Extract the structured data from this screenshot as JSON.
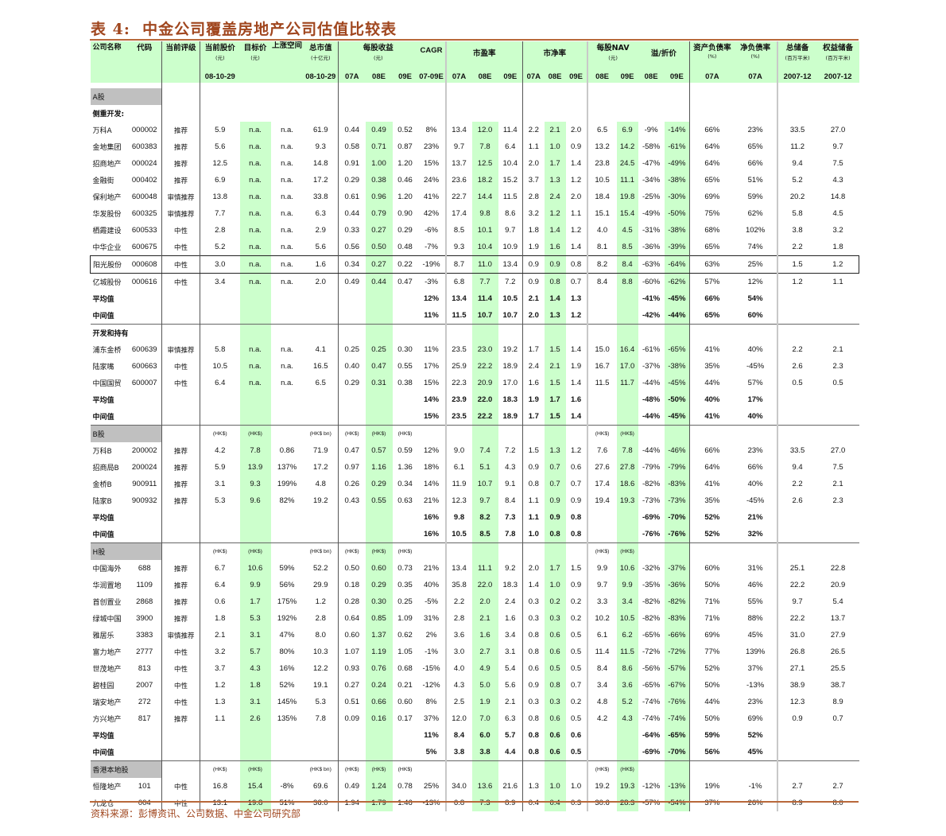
{
  "title": "表 4:  中金公司覆盖房地产公司估值比较表",
  "source": "资料来源：彭博资讯、公司数据、中金公司研究部",
  "colors": {
    "header_bg": "#ccffcc",
    "highlight_col": "#ccffcc",
    "section_bg": "#c0c0c0",
    "title": "#a0461e"
  },
  "header": {
    "name": "公司名称",
    "code": "代码",
    "rating": "当前评级",
    "price": "当前股价",
    "price_unit": "(元)",
    "price_date": "08-10-29",
    "target": "目标价",
    "target_unit": "(元)",
    "upside": "上涨空间",
    "mktcap": "总市值",
    "mktcap_unit": "(十亿元)",
    "mktcap_date": "08-10-29",
    "eps": "每股收益",
    "eps_unit": "(元)",
    "cagr": "CAGR",
    "pe": "市盈率",
    "pb": "市净率",
    "nav": "每股NAV",
    "nav_unit": "(元)",
    "prem": "溢/折价",
    "debt": "资产负债率",
    "debt_unit": "(%)",
    "netdebt": "净负债率",
    "netdebt_unit": "(%)",
    "reserve": "总储备",
    "reserve_unit": "(百万平米)",
    "equity": "权益储备",
    "equity_unit": "(百万平米)",
    "sub": [
      "07A",
      "08E",
      "09E",
      "07-09E",
      "07A",
      "08E",
      "09E",
      "07A",
      "08E",
      "09E",
      "08E",
      "09E",
      "08E",
      "09E",
      "07A",
      "07A",
      "2007-12",
      "2007-12"
    ]
  },
  "rows": [
    {
      "type": "section",
      "cells": [
        "A股",
        "",
        "",
        "",
        "",
        "",
        "",
        "",
        "",
        "",
        "",
        "",
        "",
        "",
        "",
        "",
        "",
        "",
        "",
        "",
        "",
        "",
        "",
        "",
        ""
      ]
    },
    {
      "type": "group",
      "cells": [
        "侧重开发:",
        "",
        "",
        "",
        "",
        "",
        "",
        "",
        "",
        "",
        "",
        "",
        "",
        "",
        "",
        "",
        "",
        "",
        "",
        "",
        "",
        "",
        "",
        "",
        ""
      ]
    },
    {
      "type": "data",
      "cells": [
        "万科A",
        "000002",
        "推荐",
        "5.9",
        "n.a.",
        "n.a.",
        "61.9",
        "0.44",
        "0.49",
        "0.52",
        "8%",
        "13.4",
        "12.0",
        "11.4",
        "2.2",
        "2.1",
        "2.0",
        "6.5",
        "6.9",
        "-9%",
        "-14%",
        "66%",
        "23%",
        "33.5",
        "27.0"
      ]
    },
    {
      "type": "data",
      "cells": [
        "金地集团",
        "600383",
        "推荐",
        "5.6",
        "n.a.",
        "n.a.",
        "9.3",
        "0.58",
        "0.71",
        "0.87",
        "23%",
        "9.7",
        "7.8",
        "6.4",
        "1.1",
        "1.0",
        "0.9",
        "13.2",
        "14.2",
        "-58%",
        "-61%",
        "64%",
        "65%",
        "11.2",
        "9.7"
      ]
    },
    {
      "type": "data",
      "cells": [
        "招商地产",
        "000024",
        "推荐",
        "12.5",
        "n.a.",
        "n.a.",
        "14.8",
        "0.91",
        "1.00",
        "1.20",
        "15%",
        "13.7",
        "12.5",
        "10.4",
        "2.0",
        "1.7",
        "1.4",
        "23.8",
        "24.5",
        "-47%",
        "-49%",
        "64%",
        "66%",
        "9.4",
        "7.5"
      ]
    },
    {
      "type": "data",
      "cells": [
        "金融街",
        "000402",
        "推荐",
        "6.9",
        "n.a.",
        "n.a.",
        "17.2",
        "0.29",
        "0.38",
        "0.46",
        "24%",
        "23.6",
        "18.2",
        "15.2",
        "3.7",
        "1.3",
        "1.2",
        "10.5",
        "11.1",
        "-34%",
        "-38%",
        "65%",
        "51%",
        "5.2",
        "4.3"
      ]
    },
    {
      "type": "data",
      "cells": [
        "保利地产",
        "600048",
        "审慎推荐",
        "13.8",
        "n.a.",
        "n.a.",
        "33.8",
        "0.61",
        "0.96",
        "1.20",
        "41%",
        "22.7",
        "14.4",
        "11.5",
        "2.8",
        "2.4",
        "2.0",
        "18.4",
        "19.8",
        "-25%",
        "-30%",
        "69%",
        "59%",
        "20.2",
        "14.8"
      ]
    },
    {
      "type": "data",
      "cells": [
        "华发股份",
        "600325",
        "审慎推荐",
        "7.7",
        "n.a.",
        "n.a.",
        "6.3",
        "0.44",
        "0.79",
        "0.90",
        "42%",
        "17.4",
        "9.8",
        "8.6",
        "3.2",
        "1.2",
        "1.1",
        "15.1",
        "15.4",
        "-49%",
        "-50%",
        "75%",
        "62%",
        "5.8",
        "4.5"
      ]
    },
    {
      "type": "data",
      "cells": [
        "栖霞建设",
        "600533",
        "中性",
        "2.8",
        "n.a.",
        "n.a.",
        "2.9",
        "0.33",
        "0.27",
        "0.29",
        "-6%",
        "8.5",
        "10.1",
        "9.7",
        "1.8",
        "1.4",
        "1.2",
        "4.0",
        "4.5",
        "-31%",
        "-38%",
        "68%",
        "102%",
        "3.8",
        "3.2"
      ]
    },
    {
      "type": "data",
      "cells": [
        "中华企业",
        "600675",
        "中性",
        "5.2",
        "n.a.",
        "n.a.",
        "5.6",
        "0.56",
        "0.50",
        "0.48",
        "-7%",
        "9.3",
        "10.4",
        "10.9",
        "1.9",
        "1.6",
        "1.4",
        "8.1",
        "8.5",
        "-36%",
        "-39%",
        "65%",
        "74%",
        "2.2",
        "1.8"
      ]
    },
    {
      "type": "data",
      "highlight": true,
      "cells": [
        "阳光股份",
        "000608",
        "中性",
        "3.0",
        "n.a.",
        "n.a.",
        "1.6",
        "0.34",
        "0.27",
        "0.22",
        "-19%",
        "8.7",
        "11.0",
        "13.4",
        "0.9",
        "0.9",
        "0.8",
        "8.2",
        "8.4",
        "-63%",
        "-64%",
        "63%",
        "25%",
        "1.5",
        "1.2"
      ]
    },
    {
      "type": "data",
      "cells": [
        "亿城股份",
        "000616",
        "中性",
        "3.4",
        "n.a.",
        "n.a.",
        "2.0",
        "0.49",
        "0.44",
        "0.47",
        "-3%",
        "6.8",
        "7.7",
        "7.2",
        "0.9",
        "0.8",
        "0.7",
        "8.4",
        "8.8",
        "-60%",
        "-62%",
        "57%",
        "12%",
        "1.2",
        "1.1"
      ]
    },
    {
      "type": "avg",
      "cells": [
        "平均值",
        "",
        "",
        "",
        "",
        "",
        "",
        "",
        "",
        "",
        "12%",
        "13.4",
        "11.4",
        "10.5",
        "2.1",
        "1.4",
        "1.3",
        "",
        "",
        "-41%",
        "-45%",
        "66%",
        "54%",
        "",
        ""
      ]
    },
    {
      "type": "avg",
      "cells": [
        "中间值",
        "",
        "",
        "",
        "",
        "",
        "",
        "",
        "",
        "",
        "11%",
        "11.5",
        "10.7",
        "10.7",
        "2.0",
        "1.3",
        "1.2",
        "",
        "",
        "-42%",
        "-44%",
        "65%",
        "60%",
        "",
        ""
      ]
    },
    {
      "type": "group",
      "sep": true,
      "cells": [
        "开发和持有:",
        "",
        "",
        "",
        "",
        "",
        "",
        "",
        "",
        "",
        "",
        "",
        "",
        "",
        "",
        "",
        "",
        "",
        "",
        "",
        "",
        "",
        "",
        "",
        ""
      ]
    },
    {
      "type": "data",
      "cells": [
        "浦东金桥",
        "600639",
        "审慎推荐",
        "5.8",
        "n.a.",
        "n.a.",
        "4.1",
        "0.25",
        "0.25",
        "0.30",
        "11%",
        "23.5",
        "23.0",
        "19.2",
        "1.7",
        "1.5",
        "1.4",
        "15.0",
        "16.4",
        "-61%",
        "-65%",
        "41%",
        "40%",
        "2.2",
        "2.1"
      ]
    },
    {
      "type": "data",
      "cells": [
        "陆家嘴",
        "600663",
        "中性",
        "10.5",
        "n.a.",
        "n.a.",
        "16.5",
        "0.40",
        "0.47",
        "0.55",
        "17%",
        "25.9",
        "22.2",
        "18.9",
        "2.4",
        "2.1",
        "1.9",
        "16.7",
        "17.0",
        "-37%",
        "-38%",
        "35%",
        "-45%",
        "2.6",
        "2.3"
      ]
    },
    {
      "type": "data",
      "cells": [
        "中国国贸",
        "600007",
        "中性",
        "6.4",
        "n.a.",
        "n.a.",
        "6.5",
        "0.29",
        "0.31",
        "0.38",
        "15%",
        "22.3",
        "20.9",
        "17.0",
        "1.6",
        "1.5",
        "1.4",
        "11.5",
        "11.7",
        "-44%",
        "-45%",
        "44%",
        "57%",
        "0.5",
        "0.5"
      ]
    },
    {
      "type": "avg",
      "cells": [
        "平均值",
        "",
        "",
        "",
        "",
        "",
        "",
        "",
        "",
        "",
        "14%",
        "23.9",
        "22.0",
        "18.3",
        "1.9",
        "1.7",
        "1.6",
        "",
        "",
        "-48%",
        "-50%",
        "40%",
        "17%",
        "",
        ""
      ]
    },
    {
      "type": "avg",
      "cells": [
        "中间值",
        "",
        "",
        "",
        "",
        "",
        "",
        "",
        "",
        "",
        "15%",
        "23.5",
        "22.2",
        "18.9",
        "1.7",
        "1.5",
        "1.4",
        "",
        "",
        "-44%",
        "-45%",
        "41%",
        "40%",
        "",
        ""
      ]
    },
    {
      "type": "section",
      "sep": true,
      "cells": [
        "B股",
        "",
        "",
        "(HK$)",
        "(HK$)",
        "",
        "(HK$ bn)",
        "(HK$)",
        "(HK$)",
        "(HK$)",
        "",
        "",
        "",
        "",
        "",
        "",
        "",
        "(HK$)",
        "(HK$)",
        "",
        "",
        "",
        "",
        "",
        ""
      ]
    },
    {
      "type": "data",
      "cells": [
        "万科B",
        "200002",
        "推荐",
        "4.2",
        "7.8",
        "0.86",
        "71.9",
        "0.47",
        "0.57",
        "0.59",
        "12%",
        "9.0",
        "7.4",
        "7.2",
        "1.5",
        "1.3",
        "1.2",
        "7.6",
        "7.8",
        "-44%",
        "-46%",
        "66%",
        "23%",
        "33.5",
        "27.0"
      ]
    },
    {
      "type": "data",
      "cells": [
        "招商局B",
        "200024",
        "推荐",
        "5.9",
        "13.9",
        "137%",
        "17.2",
        "0.97",
        "1.16",
        "1.36",
        "18%",
        "6.1",
        "5.1",
        "4.3",
        "0.9",
        "0.7",
        "0.6",
        "27.6",
        "27.8",
        "-79%",
        "-79%",
        "64%",
        "66%",
        "9.4",
        "7.5"
      ]
    },
    {
      "type": "data",
      "cells": [
        "金桥B",
        "900911",
        "推荐",
        "3.1",
        "9.3",
        "199%",
        "4.8",
        "0.26",
        "0.29",
        "0.34",
        "14%",
        "11.9",
        "10.7",
        "9.1",
        "0.8",
        "0.7",
        "0.7",
        "17.4",
        "18.6",
        "-82%",
        "-83%",
        "41%",
        "40%",
        "2.2",
        "2.1"
      ]
    },
    {
      "type": "data",
      "cells": [
        "陆家B",
        "900932",
        "推荐",
        "5.3",
        "9.6",
        "82%",
        "19.2",
        "0.43",
        "0.55",
        "0.63",
        "21%",
        "12.3",
        "9.7",
        "8.4",
        "1.1",
        "0.9",
        "0.9",
        "19.4",
        "19.3",
        "-73%",
        "-73%",
        "35%",
        "-45%",
        "2.6",
        "2.3"
      ]
    },
    {
      "type": "avg",
      "cells": [
        "平均值",
        "",
        "",
        "",
        "",
        "",
        "",
        "",
        "",
        "",
        "16%",
        "9.8",
        "8.2",
        "7.3",
        "1.1",
        "0.9",
        "0.8",
        "",
        "",
        "-69%",
        "-70%",
        "52%",
        "21%",
        "",
        ""
      ]
    },
    {
      "type": "avg",
      "cells": [
        "中间值",
        "",
        "",
        "",
        "",
        "",
        "",
        "",
        "",
        "",
        "16%",
        "10.5",
        "8.5",
        "7.8",
        "1.0",
        "0.8",
        "0.8",
        "",
        "",
        "-76%",
        "-76%",
        "52%",
        "32%",
        "",
        ""
      ]
    },
    {
      "type": "section",
      "sep": true,
      "cells": [
        "H股",
        "",
        "",
        "(HK$)",
        "(HK$)",
        "",
        "(HK$ bn)",
        "(HK$)",
        "(HK$)",
        "(HK$)",
        "",
        "",
        "",
        "",
        "",
        "",
        "",
        "(HK$)",
        "(HK$)",
        "",
        "",
        "",
        "",
        "",
        ""
      ]
    },
    {
      "type": "data",
      "cells": [
        "中国海外",
        "688",
        "推荐",
        "6.7",
        "10.6",
        "59%",
        "52.2",
        "0.50",
        "0.60",
        "0.73",
        "21%",
        "13.4",
        "11.1",
        "9.2",
        "2.0",
        "1.7",
        "1.5",
        "9.9",
        "10.6",
        "-32%",
        "-37%",
        "60%",
        "31%",
        "25.1",
        "22.8"
      ]
    },
    {
      "type": "data",
      "cells": [
        "华润置地",
        "1109",
        "推荐",
        "6.4",
        "9.9",
        "56%",
        "29.9",
        "0.18",
        "0.29",
        "0.35",
        "40%",
        "35.8",
        "22.0",
        "18.3",
        "1.4",
        "1.0",
        "0.9",
        "9.7",
        "9.9",
        "-35%",
        "-36%",
        "50%",
        "46%",
        "22.2",
        "20.9"
      ]
    },
    {
      "type": "data",
      "cells": [
        "首创置业",
        "2868",
        "推荐",
        "0.6",
        "1.7",
        "175%",
        "1.2",
        "0.28",
        "0.30",
        "0.25",
        "-5%",
        "2.2",
        "2.0",
        "2.4",
        "0.3",
        "0.2",
        "0.2",
        "3.3",
        "3.4",
        "-82%",
        "-82%",
        "71%",
        "55%",
        "9.7",
        "5.4"
      ]
    },
    {
      "type": "data",
      "cells": [
        "绿城中国",
        "3900",
        "推荐",
        "1.8",
        "5.3",
        "192%",
        "2.8",
        "0.64",
        "0.85",
        "1.09",
        "31%",
        "2.8",
        "2.1",
        "1.6",
        "0.3",
        "0.3",
        "0.2",
        "10.2",
        "10.5",
        "-82%",
        "-83%",
        "71%",
        "88%",
        "22.2",
        "13.7"
      ]
    },
    {
      "type": "data",
      "cells": [
        "雅居乐",
        "3383",
        "审慎推荐",
        "2.1",
        "3.1",
        "47%",
        "8.0",
        "0.60",
        "1.37",
        "0.62",
        "2%",
        "3.6",
        "1.6",
        "3.4",
        "0.8",
        "0.6",
        "0.5",
        "6.1",
        "6.2",
        "-65%",
        "-66%",
        "69%",
        "45%",
        "31.0",
        "27.9"
      ]
    },
    {
      "type": "data",
      "cells": [
        "富力地产",
        "2777",
        "中性",
        "3.2",
        "5.7",
        "80%",
        "10.3",
        "1.07",
        "1.19",
        "1.05",
        "-1%",
        "3.0",
        "2.7",
        "3.1",
        "0.8",
        "0.6",
        "0.5",
        "11.4",
        "11.5",
        "-72%",
        "-72%",
        "77%",
        "139%",
        "26.8",
        "26.5"
      ]
    },
    {
      "type": "data",
      "cells": [
        "世茂地产",
        "813",
        "中性",
        "3.7",
        "4.3",
        "16%",
        "12.2",
        "0.93",
        "0.76",
        "0.68",
        "-15%",
        "4.0",
        "4.9",
        "5.4",
        "0.6",
        "0.5",
        "0.5",
        "8.4",
        "8.6",
        "-56%",
        "-57%",
        "52%",
        "37%",
        "27.1",
        "25.5"
      ]
    },
    {
      "type": "data",
      "cells": [
        "碧桂园",
        "2007",
        "中性",
        "1.2",
        "1.8",
        "52%",
        "19.1",
        "0.27",
        "0.24",
        "0.21",
        "-12%",
        "4.3",
        "5.0",
        "5.6",
        "0.9",
        "0.8",
        "0.7",
        "3.4",
        "3.6",
        "-65%",
        "-67%",
        "50%",
        "-13%",
        "38.9",
        "38.7"
      ]
    },
    {
      "type": "data",
      "cells": [
        "瑞安地产",
        "272",
        "中性",
        "1.3",
        "3.1",
        "145%",
        "5.3",
        "0.51",
        "0.66",
        "0.60",
        "8%",
        "2.5",
        "1.9",
        "2.1",
        "0.3",
        "0.3",
        "0.2",
        "4.8",
        "5.2",
        "-74%",
        "-76%",
        "44%",
        "23%",
        "12.3",
        "8.9"
      ]
    },
    {
      "type": "data",
      "cells": [
        "方兴地产",
        "817",
        "推荐",
        "1.1",
        "2.6",
        "135%",
        "7.8",
        "0.09",
        "0.16",
        "0.17",
        "37%",
        "12.0",
        "7.0",
        "6.3",
        "0.8",
        "0.6",
        "0.5",
        "4.2",
        "4.3",
        "-74%",
        "-74%",
        "50%",
        "69%",
        "0.9",
        "0.7"
      ]
    },
    {
      "type": "avg",
      "cells": [
        "平均值",
        "",
        "",
        "",
        "",
        "",
        "",
        "",
        "",
        "",
        "11%",
        "8.4",
        "6.0",
        "5.7",
        "0.8",
        "0.6",
        "0.6",
        "",
        "",
        "-64%",
        "-65%",
        "59%",
        "52%",
        "",
        ""
      ]
    },
    {
      "type": "avg",
      "cells": [
        "中间值",
        "",
        "",
        "",
        "",
        "",
        "",
        "",
        "",
        "",
        "5%",
        "3.8",
        "3.8",
        "4.4",
        "0.8",
        "0.6",
        "0.5",
        "",
        "",
        "-69%",
        "-70%",
        "56%",
        "45%",
        "",
        ""
      ]
    },
    {
      "type": "section",
      "sep": true,
      "cells": [
        "香港本地股",
        "",
        "",
        "(HK$)",
        "(HK$)",
        "",
        "(HK$ bn)",
        "(HK$)",
        "(HK$)",
        "(HK$)",
        "",
        "",
        "",
        "",
        "",
        "",
        "",
        "(HK$)",
        "(HK$)",
        "",
        "",
        "",
        "",
        "",
        ""
      ]
    },
    {
      "type": "data",
      "cells": [
        "恒隆地产",
        "101",
        "中性",
        "16.8",
        "15.4",
        "-8%",
        "69.6",
        "0.49",
        "1.24",
        "0.78",
        "25%",
        "34.0",
        "13.6",
        "21.6",
        "1.3",
        "1.0",
        "1.0",
        "19.2",
        "19.3",
        "-12%",
        "-13%",
        "19%",
        "-1%",
        "2.7",
        "2.7"
      ]
    },
    {
      "type": "data",
      "cells": [
        "九龙仓",
        "004",
        "中性",
        "13.1",
        "19.8",
        "51%",
        "36.0",
        "1.94",
        "1.79",
        "1.46",
        "-13%",
        "6.8",
        "7.3",
        "8.9",
        "0.4",
        "0.4",
        "0.3",
        "30.6",
        "28.3",
        "-57%",
        "-54%",
        "37%",
        "26%",
        "8.9",
        "8.0"
      ]
    }
  ]
}
